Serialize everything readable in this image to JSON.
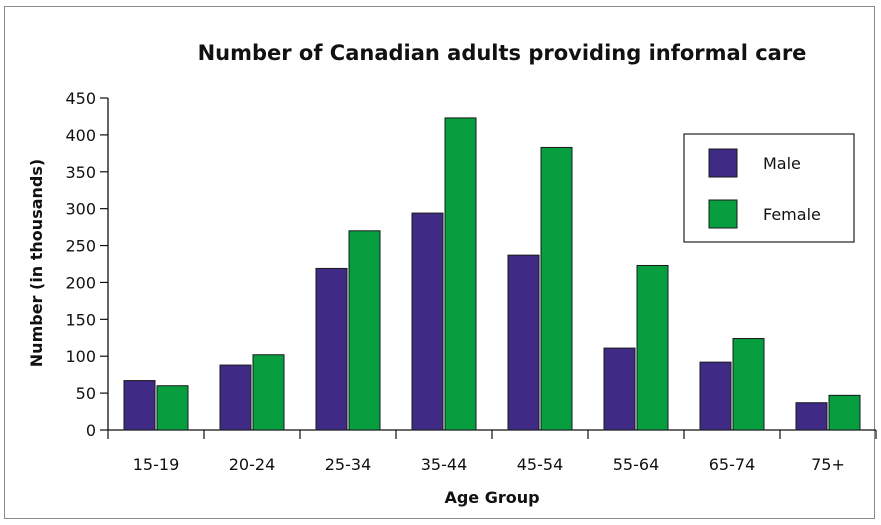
{
  "chart_data": {
    "type": "bar",
    "title": "Number of Canadian adults providing informal care",
    "xlabel": "Age Group",
    "ylabel": "Number (in thousands)",
    "ylim": [
      0,
      450
    ],
    "yticks": [
      0,
      50,
      100,
      150,
      200,
      250,
      300,
      350,
      400,
      450
    ],
    "categories": [
      "15-19",
      "20-24",
      "25-34",
      "35-44",
      "45-54",
      "55-64",
      "65-74",
      "75+"
    ],
    "series": [
      {
        "name": "Male",
        "color": "#3f2a85",
        "values": [
          67,
          88,
          219,
          294,
          237,
          111,
          92,
          37
        ]
      },
      {
        "name": "Female",
        "color": "#079e3f",
        "values": [
          60,
          102,
          270,
          423,
          383,
          223,
          124,
          47
        ]
      }
    ],
    "legend_position": "top-right",
    "grid": false
  }
}
